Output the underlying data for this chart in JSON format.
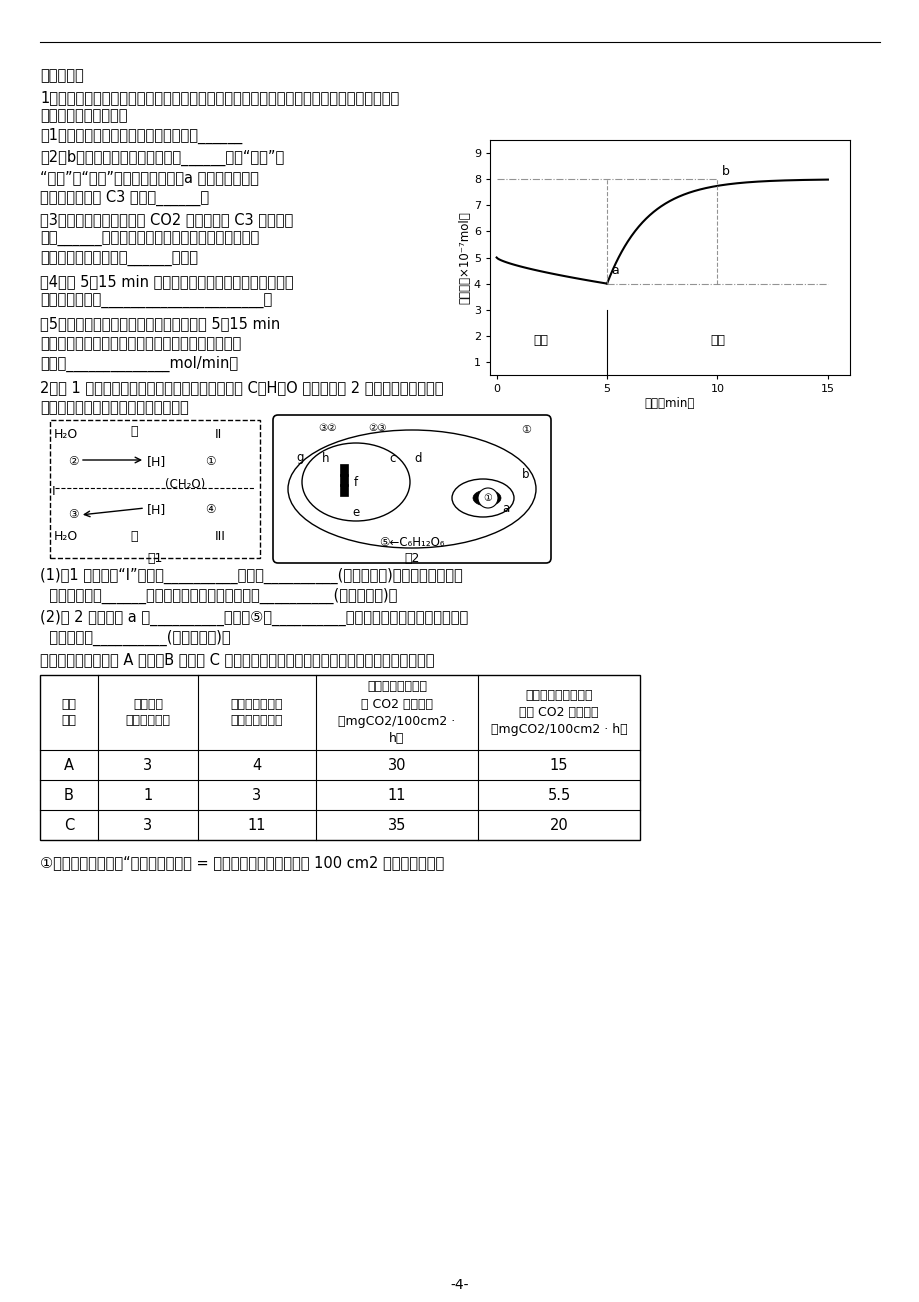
{
  "page_number": "-4-",
  "background_color": "#ffffff",
  "text_color": "#000000",
  "section_title": "植物代谢题",
  "q1_line1": "1．将小麦绿色叶片放在温度适宜的密闭容器内，测量在不同的光照条件下容器内氧气量的变",
  "q1_line2": "化，结果如右图所示。",
  "q2_line1": "2．图 1 表示番茄叶肉细胞的两个重要生理过程中 C、H、O 的变化，图 2 为大棚中番茄叶肉细",
  "q2_line2": "胞部分代谢过程示意图。请据图回答：",
  "q_note": "①如果本实验中定义“植物的光合速率 = 该植物在一定的条件下每 100 cm2 的叶面积上每小",
  "table_data": [
    [
      "A",
      "3",
      "4",
      "30",
      "15"
    ],
    [
      "B",
      "1",
      "3",
      "11",
      "5.5"
    ],
    [
      "C",
      "3",
      "11",
      "35",
      "20"
    ]
  ],
  "graph_ylabel": "氧气量（×10⁻⁷mol）",
  "graph_xlabel": "时间（min）"
}
